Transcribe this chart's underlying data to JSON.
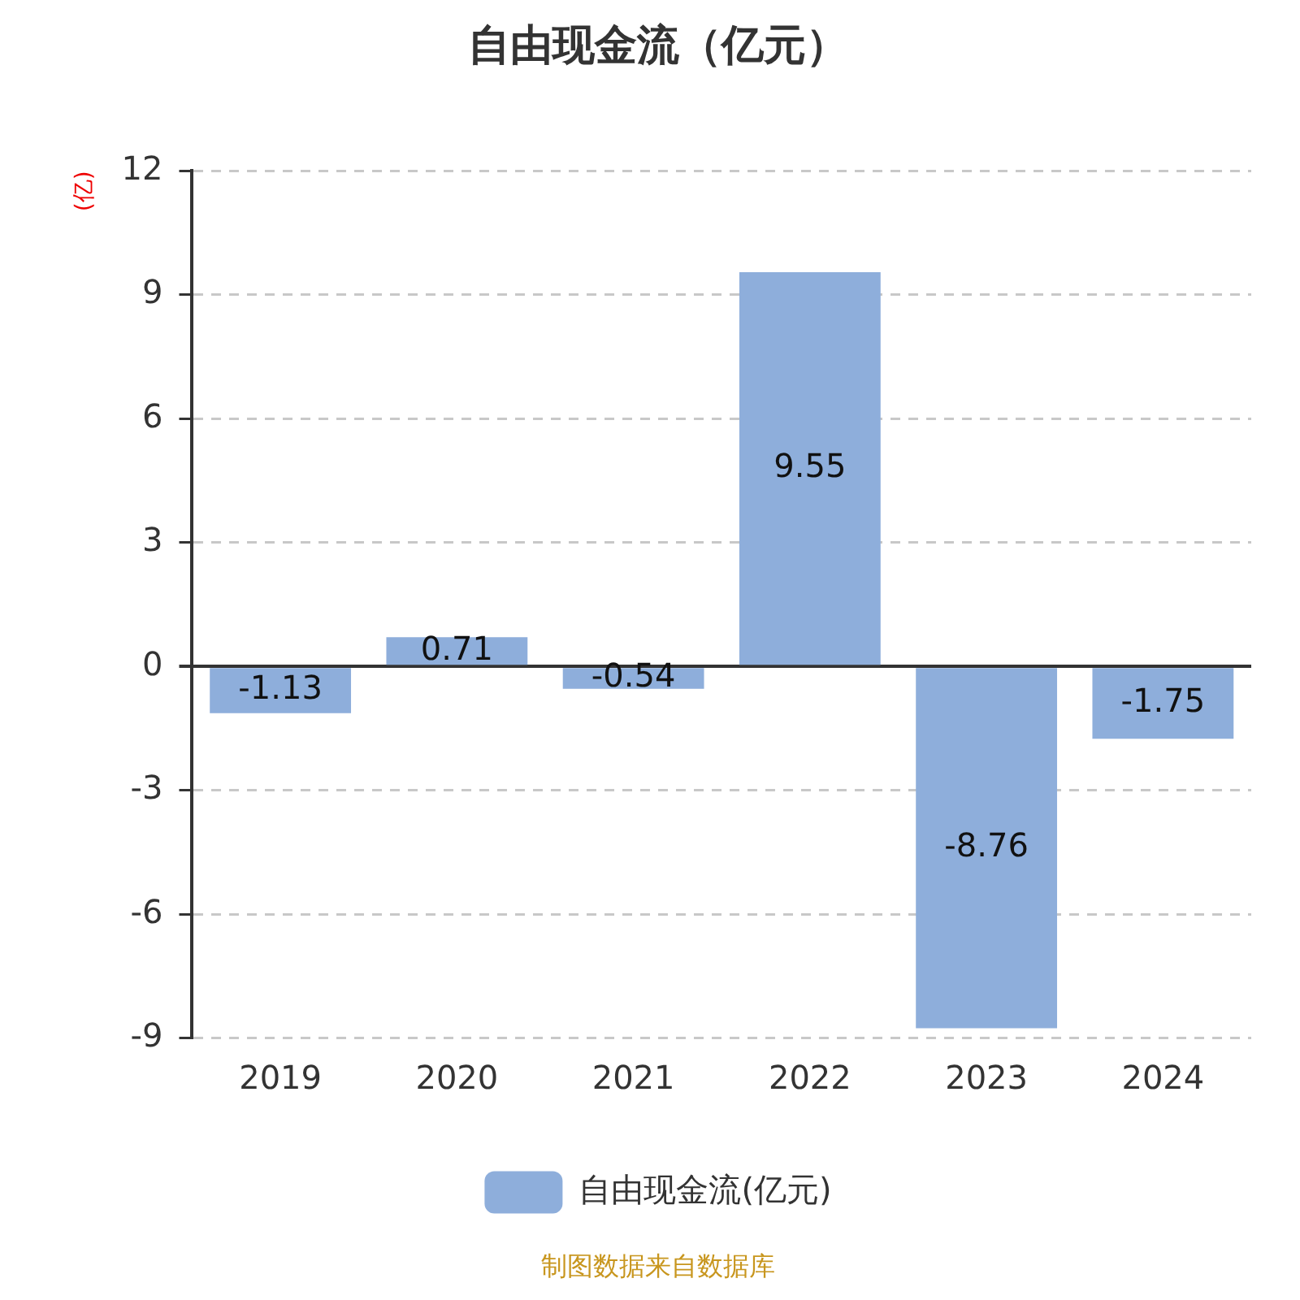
{
  "chart_data": {
    "type": "bar",
    "title": "自由现金流（亿元）",
    "ylabel": "(亿)",
    "categories": [
      "2019",
      "2020",
      "2021",
      "2022",
      "2023",
      "2024"
    ],
    "series": [
      {
        "name": "自由现金流(亿元)",
        "color": "#8eaedb",
        "values": [
          -1.13,
          0.71,
          -0.54,
          9.55,
          -8.76,
          -1.75
        ]
      }
    ],
    "ylim": [
      -9,
      12
    ],
    "yticks": [
      -9,
      -6,
      -3,
      0,
      3,
      6,
      9,
      12
    ],
    "grid": "y",
    "legend": "bottom",
    "data_labels": true,
    "annotations": [
      "制图数据来自数据库"
    ]
  }
}
